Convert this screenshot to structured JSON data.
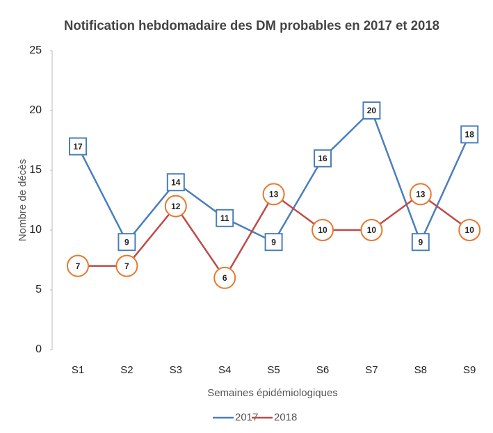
{
  "chart_data": {
    "type": "line",
    "title": "Notification hebdomadaire des DM probables en 2017 et 2018",
    "x_label": "Semaines épidémiologiques",
    "y_label": "Nombre de décès",
    "categories": [
      "S1",
      "S2",
      "S3",
      "S4",
      "S5",
      "S6",
      "S7",
      "S8",
      "S9"
    ],
    "series": [
      {
        "name": "2017",
        "color": "#4a7ebb",
        "label_border": "#4a7ebb",
        "values": [
          17,
          9,
          14,
          11,
          9,
          16,
          20,
          9,
          18
        ]
      },
      {
        "name": "2018",
        "color": "#be4b48",
        "label_border": "#e8772e",
        "values": [
          7,
          7,
          12,
          6,
          13,
          10,
          10,
          13,
          10
        ]
      }
    ],
    "ylim": [
      0,
      25
    ],
    "yticks": [
      0,
      5,
      10,
      15,
      20,
      25
    ],
    "grid": false,
    "legend": "bottom"
  }
}
